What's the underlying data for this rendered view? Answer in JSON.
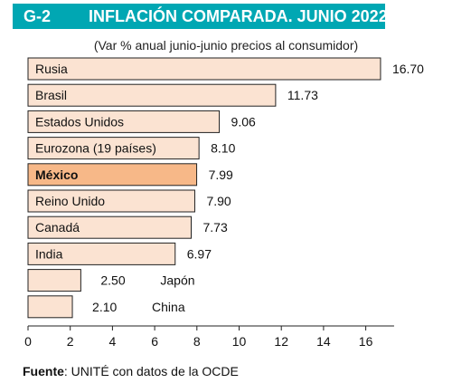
{
  "header": {
    "code": "G-2",
    "title": "INFLACIÓN COMPARADA. JUNIO 2022",
    "subtitle": "(Var % anual junio-junio precios al consumidor)"
  },
  "footer": {
    "source_label": "Fuente",
    "source_text": ": UNITÉ con datos de la OCDE"
  },
  "colors": {
    "title_bg": "#00a7b3",
    "bar_fill": "#fbe3d2",
    "bar_highlight": "#f7b888",
    "bar_stroke": "#222222"
  },
  "chart_data": {
    "type": "bar",
    "orientation": "horizontal",
    "title": "INFLACIÓN COMPARADA. JUNIO 2022",
    "subtitle": "(Var % anual junio-junio precios al consumidor)",
    "categories": [
      "Rusia",
      "Brasil",
      "Estados Unidos",
      "Eurozona (19 países)",
      "México",
      "Reino Unido",
      "Canadá",
      "India",
      "Japón",
      "China"
    ],
    "values": [
      16.7,
      11.73,
      9.06,
      8.1,
      7.99,
      7.9,
      7.73,
      6.97,
      2.5,
      2.1
    ],
    "value_labels": [
      "16.70",
      "11.73",
      "9.06",
      "8.10",
      "7.99",
      "7.90",
      "7.73",
      "6.97",
      "2.50",
      "2.10"
    ],
    "highlight": "México",
    "xlim": [
      0,
      17
    ],
    "xticks": [
      "0",
      "2",
      "4",
      "6",
      "8",
      "10",
      "12",
      "14",
      "16"
    ],
    "grid": false,
    "legend": "none"
  }
}
